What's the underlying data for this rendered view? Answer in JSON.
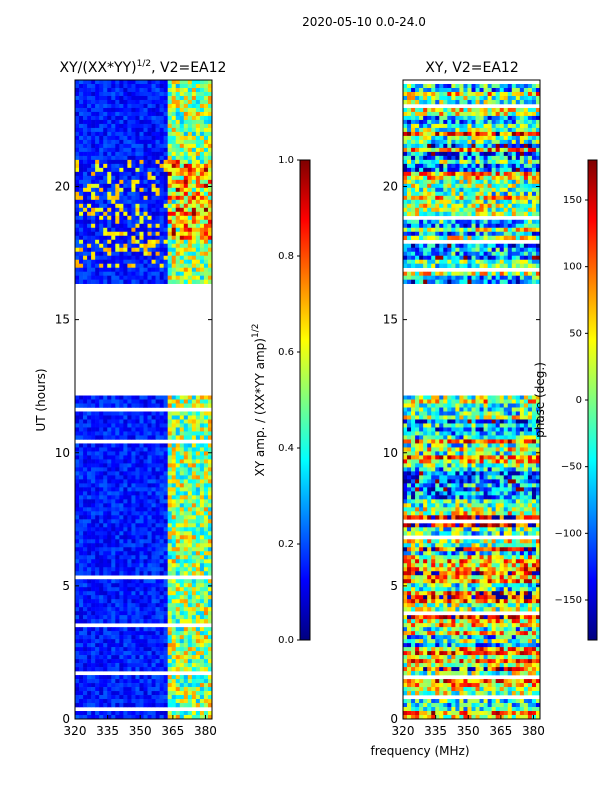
{
  "suptitle": "2020-05-10 0.0-24.0",
  "shared_xlabel": "frequency (MHz)",
  "colors": {
    "jet": [
      "#00007f",
      "#0000ff",
      "#007fff",
      "#00ffff",
      "#7fff7f",
      "#ffff00",
      "#ff7f00",
      "#ff0000",
      "#7f0000"
    ]
  },
  "chart_data": [
    {
      "type": "heatmap",
      "title": "XY/(XX*YY)",
      "title_sup": "1/2",
      "title_suffix": ", V2=EA12",
      "xlabel": "",
      "ylabel": "UT (hours)",
      "x_ticks": [
        "320",
        "335",
        "350",
        "365",
        "380"
      ],
      "x_tick_values": [
        320,
        335,
        350,
        365,
        380
      ],
      "y_ticks": [
        "0",
        "5",
        "10",
        "15",
        "20"
      ],
      "y_tick_values": [
        0,
        5,
        10,
        15,
        20
      ],
      "xlim": [
        320,
        383
      ],
      "ylim": [
        0,
        24
      ],
      "gap_hours": [
        12.2,
        16.3
      ],
      "colorbar": {
        "label": "XY amp. / (XX*YY amp)",
        "label_sup": "1/2",
        "range": [
          0.0,
          1.0
        ],
        "ticks": [
          "0.0",
          "0.2",
          "0.4",
          "0.6",
          "0.8",
          "1.0"
        ],
        "tick_values": [
          0.0,
          0.2,
          0.4,
          0.6,
          0.8,
          1.0
        ]
      }
    },
    {
      "type": "heatmap",
      "title": "XY, V2=EA12",
      "xlabel": "frequency (MHz)",
      "ylabel": "",
      "x_ticks": [
        "320",
        "335",
        "350",
        "365",
        "380"
      ],
      "x_tick_values": [
        320,
        335,
        350,
        365,
        380
      ],
      "y_ticks": [
        "0",
        "5",
        "10",
        "15",
        "20"
      ],
      "y_tick_values": [
        0,
        5,
        10,
        15,
        20
      ],
      "xlim": [
        320,
        383
      ],
      "ylim": [
        0,
        24
      ],
      "gap_hours": [
        12.2,
        16.3
      ],
      "colorbar": {
        "label": "phase (deg.)",
        "range": [
          -180,
          180
        ],
        "ticks": [
          "−150",
          "−100",
          "−50",
          "0",
          "50",
          "100",
          "150"
        ],
        "tick_values": [
          -150,
          -100,
          -50,
          0,
          50,
          100,
          150
        ]
      }
    }
  ]
}
